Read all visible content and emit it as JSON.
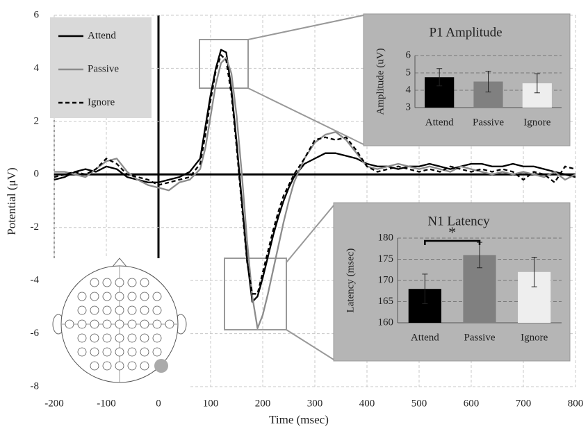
{
  "chart_data": [
    {
      "type": "line",
      "xlabel": "Time (msec)",
      "ylabel": "Potential (μV)",
      "xlim": [
        -200,
        800
      ],
      "xticks": [
        -200,
        -100,
        0,
        100,
        200,
        300,
        400,
        500,
        600,
        700,
        800
      ],
      "ylim": [
        -8,
        6
      ],
      "yticks": [
        -8,
        -6,
        -4,
        -2,
        0,
        2,
        4,
        6
      ],
      "grid": true,
      "legend": "upper left",
      "x": [
        -200,
        -180,
        -160,
        -140,
        -120,
        -100,
        -80,
        -60,
        -40,
        -20,
        0,
        20,
        40,
        60,
        80,
        90,
        100,
        110,
        120,
        130,
        140,
        150,
        160,
        170,
        180,
        190,
        200,
        210,
        220,
        230,
        240,
        250,
        260,
        280,
        300,
        320,
        340,
        360,
        380,
        400,
        420,
        440,
        460,
        480,
        500,
        520,
        540,
        560,
        580,
        600,
        620,
        640,
        660,
        680,
        700,
        720,
        740,
        760,
        780,
        800
      ],
      "series": [
        {
          "name": "Attend",
          "color": "#000000",
          "linestyle": "solid",
          "values": [
            -0.2,
            -0.1,
            0.1,
            0.2,
            0.1,
            0.3,
            0.2,
            -0.1,
            -0.2,
            -0.3,
            -0.3,
            -0.2,
            -0.1,
            0.1,
            0.6,
            1.8,
            3.0,
            4.0,
            4.7,
            4.6,
            3.2,
            1.2,
            -1.0,
            -3.2,
            -4.8,
            -4.6,
            -3.9,
            -3.1,
            -2.3,
            -1.6,
            -1.0,
            -0.5,
            -0.1,
            0.4,
            0.6,
            0.8,
            0.8,
            0.7,
            0.6,
            0.4,
            0.3,
            0.3,
            0.2,
            0.3,
            0.3,
            0.4,
            0.3,
            0.2,
            0.3,
            0.4,
            0.4,
            0.3,
            0.3,
            0.4,
            0.3,
            0.3,
            0.2,
            0.1,
            0.0,
            -0.1
          ]
        },
        {
          "name": "Passive",
          "color": "#8c8c8c",
          "linestyle": "solid",
          "values": [
            0.1,
            0.1,
            0.0,
            -0.1,
            0.2,
            0.5,
            0.6,
            0.1,
            -0.2,
            -0.4,
            -0.5,
            -0.6,
            -0.3,
            -0.2,
            0.2,
            1.0,
            2.2,
            3.4,
            4.2,
            4.4,
            3.8,
            2.2,
            0.0,
            -2.5,
            -4.6,
            -5.8,
            -5.3,
            -4.5,
            -3.6,
            -2.7,
            -1.8,
            -1.0,
            -0.3,
            0.6,
            1.2,
            1.5,
            1.6,
            1.3,
            0.8,
            0.3,
            0.2,
            0.3,
            0.4,
            0.3,
            0.2,
            0.3,
            0.2,
            0.1,
            0.3,
            0.2,
            0.1,
            0.0,
            0.1,
            0.0,
            0.1,
            0.0,
            -0.1,
            0.1,
            -0.2,
            0.0
          ]
        },
        {
          "name": "Ignore",
          "color": "#000000",
          "linestyle": "dashed",
          "values": [
            -0.1,
            0.0,
            0.1,
            0.0,
            0.2,
            0.6,
            0.4,
            0.0,
            -0.1,
            -0.2,
            -0.4,
            -0.3,
            -0.2,
            -0.1,
            0.4,
            1.5,
            2.8,
            3.9,
            4.5,
            4.3,
            3.0,
            1.0,
            -1.2,
            -3.3,
            -4.5,
            -4.5,
            -3.7,
            -2.9,
            -2.1,
            -1.4,
            -0.8,
            -0.4,
            0.0,
            0.6,
            1.3,
            1.4,
            1.3,
            1.4,
            0.9,
            0.3,
            0.1,
            0.2,
            0.3,
            0.2,
            0.1,
            0.2,
            0.1,
            0.3,
            0.2,
            0.1,
            0.2,
            0.1,
            0.2,
            0.1,
            -0.2,
            0.1,
            0.0,
            -0.3,
            0.3,
            0.2
          ]
        }
      ]
    },
    {
      "type": "bar",
      "title": "P1 Amplitude",
      "ylabel": "Amplitude (uV)",
      "categories": [
        "Attend",
        "Passive",
        "Ignore"
      ],
      "values": [
        4.75,
        4.5,
        4.4
      ],
      "errors": [
        0.5,
        0.6,
        0.55
      ],
      "colors": [
        "#000000",
        "#808080",
        "#eeeeee"
      ],
      "ylim": [
        3,
        6
      ],
      "yticks": [
        3,
        4,
        5,
        6
      ],
      "grid": true
    },
    {
      "type": "bar",
      "title": "N1 Latency",
      "ylabel": "Latency (msec)",
      "categories": [
        "Attend",
        "Passive",
        "Ignore"
      ],
      "values": [
        168,
        176,
        172
      ],
      "errors": [
        3.5,
        3,
        3.5
      ],
      "colors": [
        "#000000",
        "#808080",
        "#eeeeee"
      ],
      "ylim": [
        160,
        180
      ],
      "yticks": [
        160,
        165,
        170,
        175,
        180
      ],
      "grid": true,
      "annotation": "*"
    }
  ]
}
